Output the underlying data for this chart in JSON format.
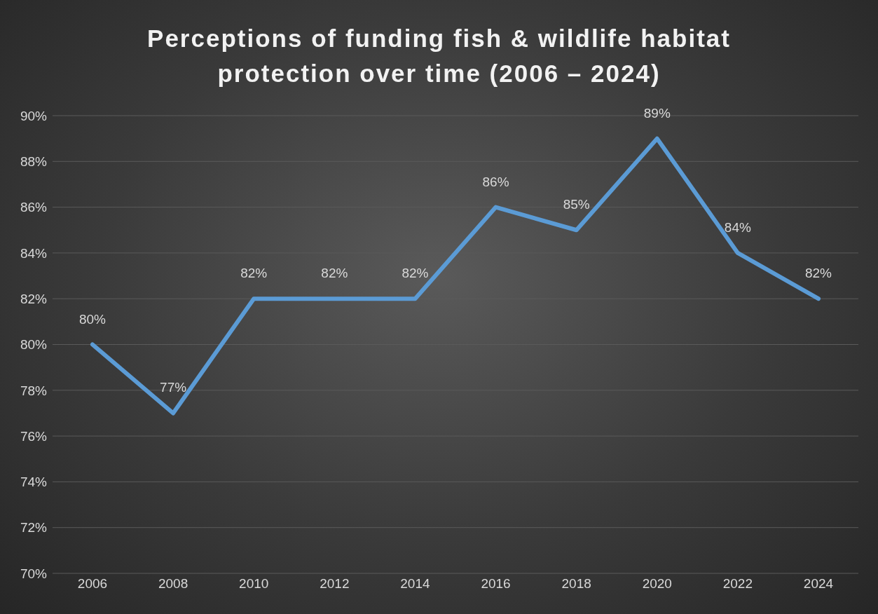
{
  "chart_data": {
    "type": "line",
    "title": "Perceptions of funding fish & wildlife habitat protection over time (2006 – 2024)",
    "categories": [
      "2006",
      "2008",
      "2010",
      "2012",
      "2014",
      "2016",
      "2018",
      "2020",
      "2022",
      "2024"
    ],
    "series": [
      {
        "color": "#5b9bd5",
        "values": [
          80,
          77,
          82,
          82,
          82,
          86,
          85,
          89,
          84,
          82
        ],
        "value_labels": [
          "80%",
          "77%",
          "82%",
          "82%",
          "82%",
          "86%",
          "85%",
          "89%",
          "84%",
          "82%"
        ]
      }
    ],
    "ylim": [
      70,
      90
    ],
    "yticks": [
      {
        "value": 70,
        "label": "70%"
      },
      {
        "value": 72,
        "label": "72%"
      },
      {
        "value": 74,
        "label": "74%"
      },
      {
        "value": 76,
        "label": "76%"
      },
      {
        "value": 78,
        "label": "78%"
      },
      {
        "value": 80,
        "label": "80%"
      },
      {
        "value": 82,
        "label": "82%"
      },
      {
        "value": 84,
        "label": "84%"
      },
      {
        "value": 86,
        "label": "86%"
      },
      {
        "value": 88,
        "label": "88%"
      },
      {
        "value": 90,
        "label": "90%"
      }
    ],
    "grid": "y",
    "legend": false,
    "marker": "none",
    "line_style": "solid"
  }
}
